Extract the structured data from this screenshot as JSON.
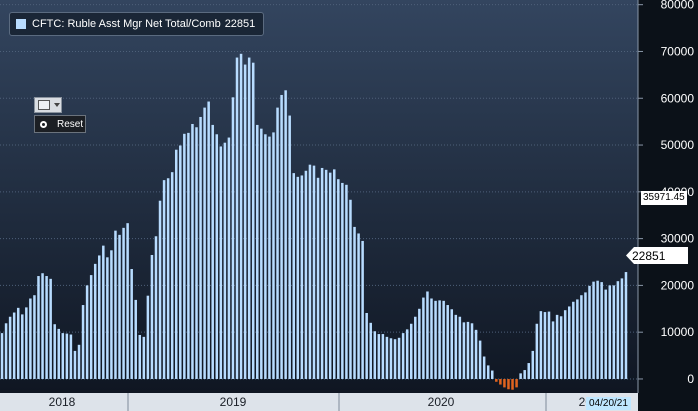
{
  "chart_data": {
    "type": "bar",
    "title": "CFTC: Ruble Asst Mgr Net Total/Comb",
    "legend": {
      "label": "CFTC: Ruble Asst Mgr Net Total/Comb",
      "value": "22851",
      "placement": "top-left"
    },
    "series": [
      {
        "values": [
          9800,
          11900,
          13300,
          14200,
          15200,
          13800,
          15300,
          17200,
          17900,
          22000,
          22600,
          22000,
          21400,
          11700,
          10700,
          9800,
          9700,
          9500,
          6000,
          7300,
          15800,
          20000,
          22200,
          24600,
          26400,
          28500,
          26000,
          27500,
          31700,
          30800,
          32300,
          33300,
          23500,
          16900,
          9400,
          9000,
          17800,
          26500,
          30500,
          38100,
          42500,
          42900,
          44200,
          49000,
          49900,
          52400,
          52600,
          54500,
          53800,
          56000,
          58000,
          59300,
          54300,
          52300,
          49700,
          50500,
          51600,
          60200,
          68700,
          69500,
          67200,
          68700,
          67600,
          54300,
          53500,
          52300,
          51800,
          52700,
          58000,
          60700,
          61700,
          56300,
          44000,
          43200,
          43500,
          44500,
          45800,
          45600,
          43000,
          45100,
          44700,
          44100,
          44800,
          42700,
          41900,
          41500,
          38300,
          32500,
          31100,
          29500,
          14100,
          12000,
          10200,
          9600,
          9600,
          9000,
          8700,
          8500,
          8800,
          9800,
          10600,
          11800,
          13300,
          15000,
          17400,
          18700,
          17200,
          16700,
          16800,
          16700,
          15800,
          14900,
          13700,
          13300,
          12100,
          12200,
          11900,
          10500,
          8200,
          4800,
          2900,
          1800,
          -600,
          -1200,
          -1800,
          -2200,
          -2300,
          -1800,
          1200,
          1900,
          3400,
          6000,
          11800,
          14500,
          14300,
          14400,
          12300,
          13700,
          13400,
          14700,
          15500,
          16500,
          17000,
          17900,
          18500,
          19900,
          20800,
          21000,
          20700,
          19100,
          20000,
          20000,
          20900,
          21500,
          22851
        ]
      }
    ],
    "x_axis": {
      "tick_labels": [
        "2018",
        "2019",
        "2020",
        "2021"
      ]
    },
    "y_axis": {
      "min": -3000,
      "max": 81000,
      "ticks": [
        0,
        10000,
        20000,
        30000,
        40000,
        50000,
        60000,
        70000,
        80000
      ],
      "position": "right"
    },
    "reference_value": "35971.45",
    "last_value": "22851",
    "last_date": "04/20/21",
    "grid": true,
    "colors": {
      "positive": "#b8dcff",
      "negative": "#e0631f",
      "background_top": "#33455f",
      "background_bottom": "#0f1622"
    }
  },
  "controls": {
    "reset_label": "Reset",
    "tool_icon": "chart-type-icon"
  }
}
